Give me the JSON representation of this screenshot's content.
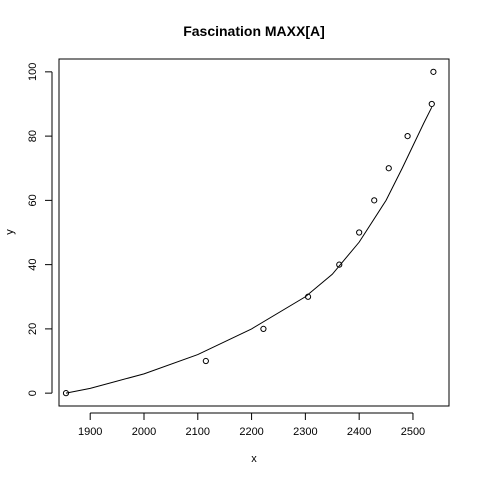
{
  "chart_data": {
    "type": "scatter",
    "title": "Fascination MAXX[A]",
    "xlabel": "x",
    "ylabel": "y",
    "xlim": [
      1842,
      2567
    ],
    "ylim": [
      -4,
      104
    ],
    "x_ticks": [
      1900,
      2000,
      2100,
      2200,
      2300,
      2400,
      2500
    ],
    "y_ticks": [
      0,
      20,
      40,
      60,
      80,
      100
    ],
    "grid": false,
    "points": [
      {
        "x": 1855,
        "y": 0
      },
      {
        "x": 2115,
        "y": 10
      },
      {
        "x": 2222,
        "y": 20
      },
      {
        "x": 2305,
        "y": 30
      },
      {
        "x": 2363,
        "y": 40
      },
      {
        "x": 2400,
        "y": 50
      },
      {
        "x": 2428,
        "y": 60
      },
      {
        "x": 2455,
        "y": 70
      },
      {
        "x": 2490,
        "y": 80
      },
      {
        "x": 2535,
        "y": 90
      },
      {
        "x": 2538,
        "y": 100
      }
    ],
    "curve": {
      "x": [
        1855,
        1900,
        2000,
        2100,
        2200,
        2300,
        2350,
        2400,
        2450,
        2480,
        2500,
        2520,
        2535
      ],
      "y": [
        0,
        1.5,
        6,
        12,
        20,
        30,
        37,
        47,
        60,
        70,
        77,
        84,
        89
      ]
    }
  }
}
